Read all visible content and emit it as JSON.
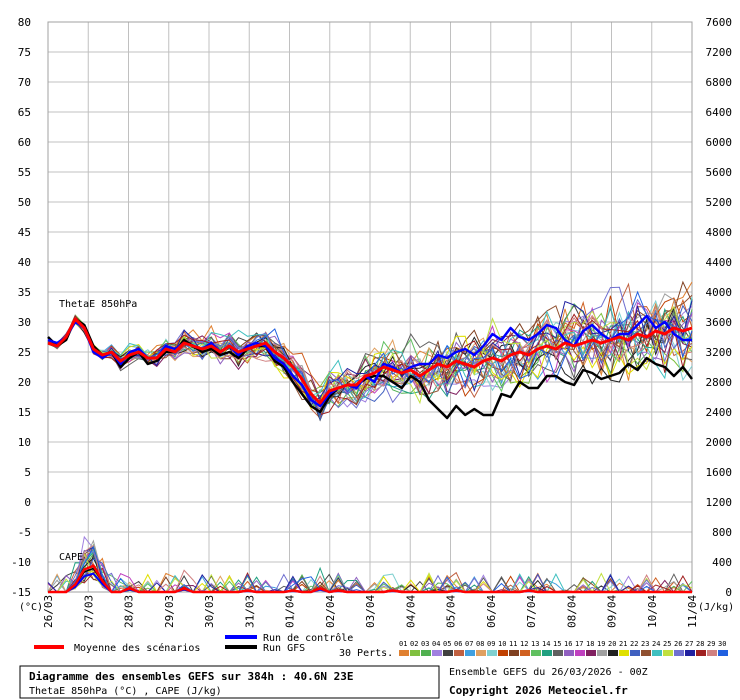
{
  "chart_data": {
    "type": "line",
    "title": "Diagramme des ensembles GEFS sur 384h : 40.6N 23E",
    "subtitle": "ThetaE 850hPa (°C) , CAPE (J/kg)",
    "run_label": "Ensemble GEFS du 26/03/2026 - 00Z",
    "copyright": "Copyright 2026 Meteociel.fr",
    "left_unit": "(°C)",
    "right_unit": "(J/kg)",
    "ylim": [
      -15,
      80
    ],
    "y2lim": [
      0,
      7600
    ],
    "y_ticks": [
      80,
      75,
      70,
      65,
      60,
      55,
      50,
      45,
      40,
      35,
      30,
      25,
      20,
      15,
      10,
      5,
      0,
      -5,
      -10,
      -15
    ],
    "y2_ticks": [
      7600,
      7200,
      6800,
      6400,
      6000,
      5600,
      5200,
      4800,
      4400,
      4000,
      3600,
      3200,
      2800,
      2400,
      2000,
      1600,
      1200,
      800,
      400,
      0
    ],
    "x_ticks": [
      "26/03",
      "27/03",
      "28/03",
      "29/03",
      "30/03",
      "31/03",
      "01/04",
      "02/04",
      "03/04",
      "04/04",
      "05/04",
      "06/04",
      "07/04",
      "08/04",
      "09/04",
      "10/04",
      "11/04"
    ],
    "series_label_thetae": "ThetaE 850hPa",
    "series_label_cape": "CAPE",
    "legend": {
      "mean_label": "Moyenne des scénarios",
      "control_label": "Run de contrôle",
      "gfs_label": "Run GFS",
      "perts_label": "30 Perts."
    },
    "colors": {
      "mean": "#ff0000",
      "control": "#0000ff",
      "gfs": "#000000",
      "grid": "#c0c0c0"
    },
    "perts": [
      {
        "num": "01",
        "color": "#e08030"
      },
      {
        "num": "02",
        "color": "#80c040"
      },
      {
        "num": "03",
        "color": "#50b050"
      },
      {
        "num": "04",
        "color": "#a080e0"
      },
      {
        "num": "05",
        "color": "#404040"
      },
      {
        "num": "06",
        "color": "#c06040"
      },
      {
        "num": "07",
        "color": "#40a0e0"
      },
      {
        "num": "08",
        "color": "#e0a060"
      },
      {
        "num": "09",
        "color": "#80d0d0"
      },
      {
        "num": "10",
        "color": "#c04000"
      },
      {
        "num": "11",
        "color": "#804020"
      },
      {
        "num": "12",
        "color": "#d06020"
      },
      {
        "num": "13",
        "color": "#60c060"
      },
      {
        "num": "14",
        "color": "#20a080"
      },
      {
        "num": "15",
        "color": "#606060"
      },
      {
        "num": "16",
        "color": "#9060c0"
      },
      {
        "num": "17",
        "color": "#c040c0"
      },
      {
        "num": "18",
        "color": "#802060"
      },
      {
        "num": "19",
        "color": "#a0a0a0"
      },
      {
        "num": "20",
        "color": "#202020"
      },
      {
        "num": "21",
        "color": "#e0e000"
      },
      {
        "num": "22",
        "color": "#4060c0"
      },
      {
        "num": "23",
        "color": "#905030"
      },
      {
        "num": "24",
        "color": "#40c0c0"
      },
      {
        "num": "25",
        "color": "#c0e040"
      },
      {
        "num": "26",
        "color": "#7070d0"
      },
      {
        "num": "27",
        "color": "#2020a0"
      },
      {
        "num": "28",
        "color": "#a02020"
      },
      {
        "num": "29",
        "color": "#d08080"
      },
      {
        "num": "30",
        "color": "#2060e0"
      }
    ],
    "mean_thetae": [
      26.5,
      26,
      27.5,
      30.5,
      29,
      25.5,
      24.5,
      25,
      23.5,
      24.5,
      25,
      24,
      24,
      25.5,
      25,
      26.5,
      26,
      25.5,
      26,
      25,
      26,
      25,
      25.5,
      26,
      26.5,
      25,
      24,
      22.5,
      20.5,
      18,
      16.5,
      18.5,
      19,
      19.5,
      19.5,
      21,
      21.5,
      22.5,
      22,
      21.5,
      22,
      21,
      22,
      23,
      22.5,
      23.5,
      23,
      22.5,
      23.5,
      24,
      23.5,
      24.5,
      25,
      24.5,
      25.5,
      26,
      25.5,
      26.5,
      26,
      26.5,
      27,
      26.5,
      27,
      27.5,
      27,
      28,
      27.5,
      28.5,
      28,
      29,
      28.5,
      29
    ],
    "control_thetae": [
      27,
      26.5,
      27.5,
      30,
      29,
      25,
      24,
      25,
      23,
      25,
      25.5,
      24,
      24,
      26,
      25.5,
      26.5,
      26,
      25.5,
      26.5,
      25,
      26,
      24.5,
      26,
      26.5,
      26,
      24,
      23,
      21,
      19.5,
      17,
      16,
      18,
      19,
      19.5,
      19,
      21,
      20,
      23,
      22.5,
      21.5,
      22.5,
      23,
      23,
      24.5,
      24,
      25,
      25.5,
      24.5,
      26,
      28,
      27,
      29,
      27.5,
      27,
      28,
      29.5,
      29,
      27,
      26,
      28.5,
      29.5,
      28,
      27,
      28,
      28,
      29.5,
      31,
      29,
      30,
      28,
      27,
      27
    ],
    "gfs_thetae": [
      27.5,
      26,
      27,
      30.5,
      29.5,
      26,
      24.5,
      25,
      22.5,
      24,
      25,
      23,
      23.5,
      25,
      25,
      27,
      26,
      25,
      25.5,
      24.5,
      25,
      24,
      25.5,
      26,
      26,
      23.5,
      22.5,
      20,
      18,
      16,
      15,
      17.5,
      19,
      19.5,
      19.5,
      20.5,
      21,
      21,
      20,
      19,
      21,
      20,
      17,
      15.5,
      14,
      16,
      14.5,
      15.5,
      14.5,
      14.5,
      18,
      17.5,
      20,
      19,
      19,
      21,
      21,
      20,
      19.5,
      22,
      21.5,
      20.5,
      21,
      21.5,
      23,
      22,
      24,
      23,
      22.5,
      21,
      22.5,
      20.5
    ],
    "mean_cape": [
      0,
      0,
      0,
      100,
      300,
      350,
      150,
      0,
      0,
      50,
      0,
      0,
      0,
      0,
      0,
      50,
      0,
      0,
      0,
      0,
      0,
      0,
      20,
      0,
      0,
      0,
      0,
      20,
      0,
      0,
      50,
      0,
      20,
      0,
      0,
      0,
      0,
      0,
      20,
      0,
      0,
      0,
      0,
      0,
      0,
      20,
      0,
      0,
      0,
      0,
      0,
      0,
      0,
      20,
      0,
      0,
      0,
      0,
      0,
      0,
      0,
      0,
      0,
      0,
      0,
      0,
      0,
      0,
      0,
      0,
      0,
      0
    ]
  }
}
